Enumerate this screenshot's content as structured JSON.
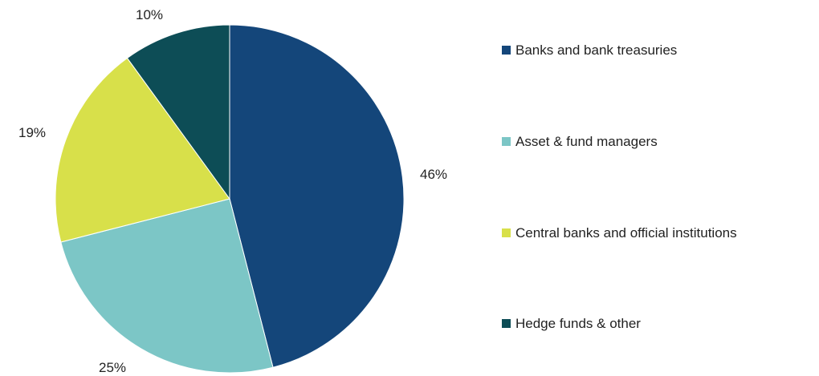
{
  "chart_data": {
    "type": "pie",
    "start_angle_deg": 0,
    "direction": "clockwise",
    "legend_position": "right",
    "slices": [
      {
        "name": "Banks and bank treasuries",
        "value": 46,
        "label": "46%",
        "color": "#14467a"
      },
      {
        "name": "Asset & fund managers",
        "value": 25,
        "label": "25%",
        "color": "#7cc6c6"
      },
      {
        "name": "Central banks and official institutions",
        "value": 19,
        "label": "19%",
        "color": "#d8e04a"
      },
      {
        "name": "Hedge funds & other",
        "value": 10,
        "label": "10%",
        "color": "#0d4d56"
      }
    ]
  }
}
